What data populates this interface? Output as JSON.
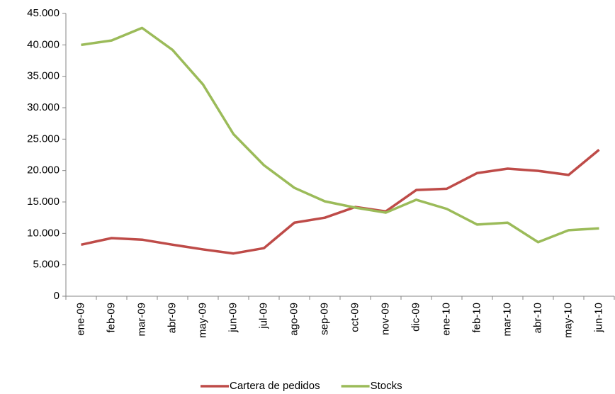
{
  "chart_data": {
    "type": "line",
    "categories": [
      "ene-09",
      "feb-09",
      "mar-09",
      "abr-09",
      "may-09",
      "jun-09",
      "jul-09",
      "ago-09",
      "sep-09",
      "oct-09",
      "nov-09",
      "dic-09",
      "ene-10",
      "feb-10",
      "mar-10",
      "abr-10",
      "may-10",
      "jun-10"
    ],
    "series": [
      {
        "name": "Cartera de pedidos",
        "color": "#be4b48",
        "values": [
          8200,
          9250,
          9000,
          8200,
          7450,
          6800,
          7650,
          11700,
          12500,
          14200,
          13500,
          16900,
          17100,
          19600,
          20300,
          19950,
          19300,
          23300
        ]
      },
      {
        "name": "Stocks",
        "color": "#9bbb59",
        "values": [
          40000,
          40700,
          42700,
          39200,
          33700,
          25800,
          20850,
          17250,
          15100,
          14100,
          13300,
          15350,
          13900,
          11400,
          11700,
          8600,
          10500,
          10800
        ]
      }
    ],
    "ylim": [
      0,
      45000
    ],
    "yticks": [
      0,
      {
        "value": 5000,
        "label": "5.000"
      },
      {
        "value": 10000,
        "label": "10.000"
      },
      {
        "value": 15000,
        "label": "15.000"
      },
      {
        "value": 20000,
        "label": "20.000"
      },
      {
        "value": 25000,
        "label": "25.000"
      },
      {
        "value": 30000,
        "label": "30.000"
      },
      {
        "value": 35000,
        "label": "35.000"
      },
      {
        "value": 40000,
        "label": "40.000"
      },
      {
        "value": 45000,
        "label": "45.000"
      }
    ],
    "grid": false,
    "legend": "bottom"
  }
}
